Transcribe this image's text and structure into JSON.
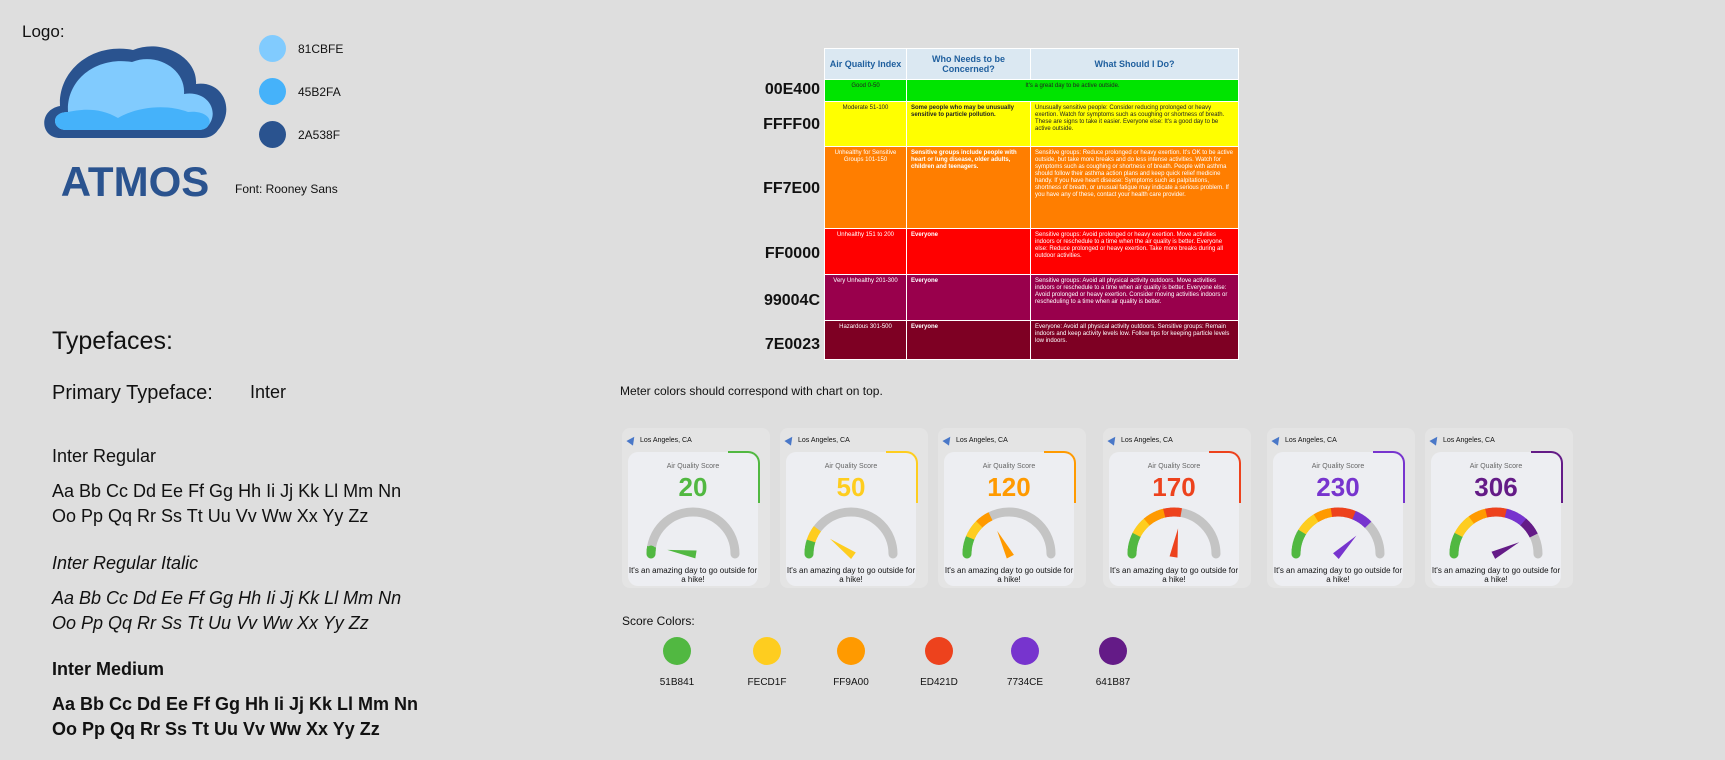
{
  "logo": {
    "label": "Logo:",
    "wordmark": "ATMOS",
    "font_note": "Font: Rooney Sans",
    "swatches": [
      {
        "hex": "81CBFE",
        "color": "#81CBFE"
      },
      {
        "hex": "45B2FA",
        "color": "#45B2FA"
      },
      {
        "hex": "2A538F",
        "color": "#2A538F"
      }
    ]
  },
  "typefaces": {
    "heading": "Typefaces:",
    "primary_label": "Primary Typeface:",
    "primary_name": "Inter",
    "styles": [
      {
        "name": "Inter Regular",
        "line1": "Aa Bb Cc Dd Ee Ff Gg Hh Ii Jj Kk Ll Mm Nn",
        "line2": "Oo Pp Qq Rr Ss Tt Uu Vv Ww Xx Yy Zz"
      },
      {
        "name": "Inter Regular Italic",
        "line1": "Aa Bb Cc Dd Ee Ff Gg Hh Ii Jj Kk Ll Mm Nn",
        "line2": "Oo Pp Qq Rr Ss Tt Uu Vv Ww Xx Yy Zz"
      },
      {
        "name": "Inter Medium",
        "line1": "Aa Bb Cc Dd Ee Ff Gg Hh Ii Jj Kk Ll Mm Nn",
        "line2": "Oo Pp Qq Rr Ss Tt Uu Vv Ww Xx Yy Zz"
      }
    ]
  },
  "aqi_table": {
    "headers": [
      "Air Quality Index",
      "Who Needs to be Concerned?",
      "What Should I Do?"
    ],
    "rows": [
      {
        "hex": "00E400",
        "color": "#00E400",
        "text_color": "#222",
        "index": "Good 0-50",
        "who": "",
        "what": "It's a great day to be active outside."
      },
      {
        "hex": "FFFF00",
        "color": "#FFFF00",
        "text_color": "#222",
        "index": "Moderate 51-100",
        "who": "Some people who may be unusually sensitive to particle pollution.",
        "what": "Unusually sensitive people: Consider reducing prolonged or heavy exertion. Watch for symptoms such as coughing or shortness of breath. These are signs to take it easier. Everyone else: It's a good day to be active outside."
      },
      {
        "hex": "FF7E00",
        "color": "#FF7E00",
        "text_color": "#fff",
        "index": "Unhealthy for Sensitive Groups 101-150",
        "who": "Sensitive groups include people with heart or lung disease, older adults, children and teenagers.",
        "what": "Sensitive groups: Reduce prolonged or heavy exertion. It's OK to be active outside, but take more breaks and do less intense activities. Watch for symptoms such as coughing or shortness of breath. People with asthma should follow their asthma action plans and keep quick relief medicine handy. If you have heart disease: Symptoms such as palpitations, shortness of breath, or unusual fatigue may indicate a serious problem. If you have any of these, contact your health care provider."
      },
      {
        "hex": "FF0000",
        "color": "#FF0000",
        "text_color": "#fff",
        "index": "Unhealthy 151 to 200",
        "who": "Everyone",
        "what": "Sensitive groups: Avoid prolonged or heavy exertion. Move activities indoors or reschedule to a time when the air quality is better. Everyone else: Reduce prolonged or heavy exertion. Take more breaks during all outdoor activities."
      },
      {
        "hex": "99004C",
        "color": "#99004C",
        "text_color": "#fff",
        "index": "Very Unhealthy 201-300",
        "who": "Everyone",
        "what": "Sensitive groups: Avoid all physical activity outdoors. Move activities indoors or reschedule to a time when air quality is better. Everyone else: Avoid prolonged or heavy exertion. Consider moving activities indoors or rescheduling to a time when air quality is better."
      },
      {
        "hex": "7E0023",
        "color": "#7E0023",
        "text_color": "#fff",
        "index": "Hazardous 301-500",
        "who": "Everyone",
        "what": "Everyone: Avoid all physical activity outdoors. Sensitive groups: Remain indoors and keep activity levels low. Follow tips for keeping particle levels low indoors."
      }
    ]
  },
  "meter_note": "Meter colors should correspond with chart on top.",
  "cards": [
    {
      "location": "Los Angeles, CA",
      "label": "Air Quality Score",
      "score": "20",
      "color": "#51B841",
      "level": 0.05,
      "message": "It's an amazing day to go outside for a hike!"
    },
    {
      "location": "Los Angeles, CA",
      "label": "Air Quality Score",
      "score": "50",
      "color": "#FECD1F",
      "level": 0.2,
      "message": "It's an amazing day to go outside for a hike!"
    },
    {
      "location": "Los Angeles, CA",
      "label": "Air Quality Score",
      "score": "120",
      "color": "#FF9A00",
      "level": 0.35,
      "message": "It's an amazing day to go outside for a hike!"
    },
    {
      "location": "Los Angeles, CA",
      "label": "Air Quality Score",
      "score": "170",
      "color": "#ED421D",
      "level": 0.55,
      "message": "It's an amazing day to go outside for a hike!"
    },
    {
      "location": "Los Angeles, CA",
      "label": "Air Quality Score",
      "score": "230",
      "color": "#7734CE",
      "level": 0.75,
      "message": "It's an amazing day to go outside for a hike!"
    },
    {
      "location": "Los Angeles, CA",
      "label": "Air Quality Score",
      "score": "306",
      "color": "#641B87",
      "level": 0.85,
      "message": "It's an amazing day to go outside for a hike!"
    }
  ],
  "score_colors": {
    "label": "Score Colors:",
    "items": [
      {
        "hex": "51B841",
        "color": "#51B841"
      },
      {
        "hex": "FECD1F",
        "color": "#FECD1F"
      },
      {
        "hex": "FF9A00",
        "color": "#FF9A00"
      },
      {
        "hex": "ED421D",
        "color": "#ED421D"
      },
      {
        "hex": "7734CE",
        "color": "#7734CE"
      },
      {
        "hex": "641B87",
        "color": "#641B87"
      }
    ]
  }
}
